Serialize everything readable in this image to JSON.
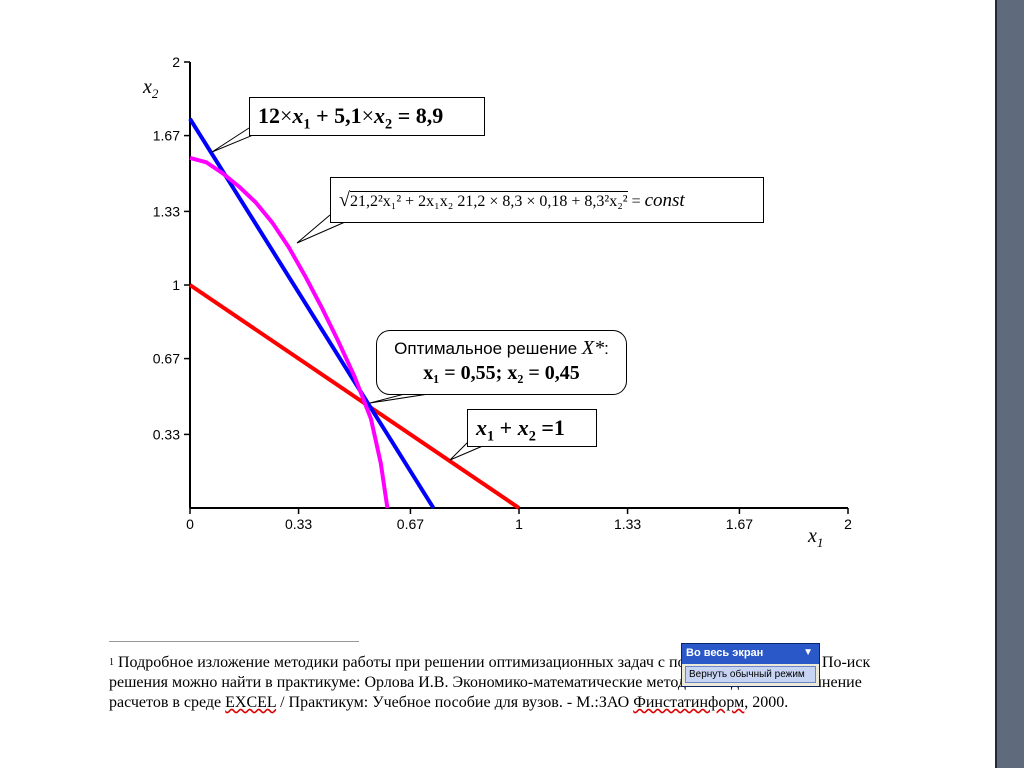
{
  "chart_data": {
    "type": "line",
    "xlabel": "x1",
    "ylabel": "x2",
    "xlim": [
      0,
      2
    ],
    "ylim": [
      0,
      2
    ],
    "x_tick_labels": [
      "0",
      "0.33",
      "0.67",
      "1",
      "1.33",
      "1.67",
      "2"
    ],
    "y_tick_labels": [
      "0.33",
      "0.67",
      "1",
      "1.33",
      "1.67",
      "2"
    ],
    "x_ticks": [
      0,
      0.33,
      0.67,
      1,
      1.33,
      1.67,
      2
    ],
    "y_ticks": [
      0.33,
      0.67,
      1,
      1.33,
      1.67,
      2
    ],
    "grid": false,
    "series": [
      {
        "label_ref": "eq3",
        "color": "#ff0000",
        "x": [
          0,
          1
        ],
        "y": [
          1,
          0
        ]
      },
      {
        "label_ref": "eq1",
        "color": "#0000ff",
        "x": [
          0,
          0.74
        ],
        "y": [
          1.745,
          0
        ]
      },
      {
        "label_ref": "eq2",
        "color": "#ff00ff",
        "x": [
          0,
          0.05,
          0.1,
          0.15,
          0.2,
          0.25,
          0.3,
          0.35,
          0.4,
          0.45,
          0.5,
          0.55,
          0.58,
          0.6
        ],
        "y": [
          1.57,
          1.55,
          1.5,
          1.44,
          1.37,
          1.28,
          1.17,
          1.04,
          0.9,
          0.75,
          0.59,
          0.4,
          0.2,
          0
        ]
      }
    ],
    "optimum": {
      "x": 0.55,
      "y": 0.45
    }
  },
  "annotations": {
    "eq1": {
      "coef1": "12",
      "times": "×",
      "var1": "x",
      "sub1": "1",
      "plus": " + 5,1",
      "var2": "x",
      "sub2": "2",
      "rhs": " = 8,9"
    },
    "eq2": {
      "radicand": "21,2²x₁² + 2x₁x₂ 21,2 × 8,3 × 0,18 + 8,3²x₂²",
      "eq": " = ",
      "rhs": "const"
    },
    "optimal": {
      "line1": "Оптимальное решение ",
      "xstar": "X*",
      "colon": ":",
      "line2": "x₁ = 0,55; x₂ = 0,45"
    },
    "eq3": {
      "var1": "x",
      "sub1": "1",
      "plus": " + ",
      "var2": "x",
      "sub2": "2",
      "rhs": " =1"
    }
  },
  "footnote": {
    "mark": "1",
    "part1": " Подробное изложение методики работы при решении оптимизационных задач с помощью надстройки По-иск решения можно найти в практикуме: Орлова И.В. Экономико-математические методы и модели. Вы-полнение расчетов в среде ",
    "excel": "EXCEL",
    "part2": "  / Практикум: Учебное пособие для вузов. - М.:ЗАО ",
    "publisher": "Финстатинформ",
    "part3": ", 2000."
  },
  "toolbar": {
    "title": "Во весь экран",
    "arrow": "▼",
    "button": "Вернуть обычный режим"
  },
  "colors": {
    "red_line": "#ff0000",
    "blue_line": "#0000ff",
    "magenta_curve": "#ff00ff",
    "side_bar": "#5f6b7d"
  }
}
